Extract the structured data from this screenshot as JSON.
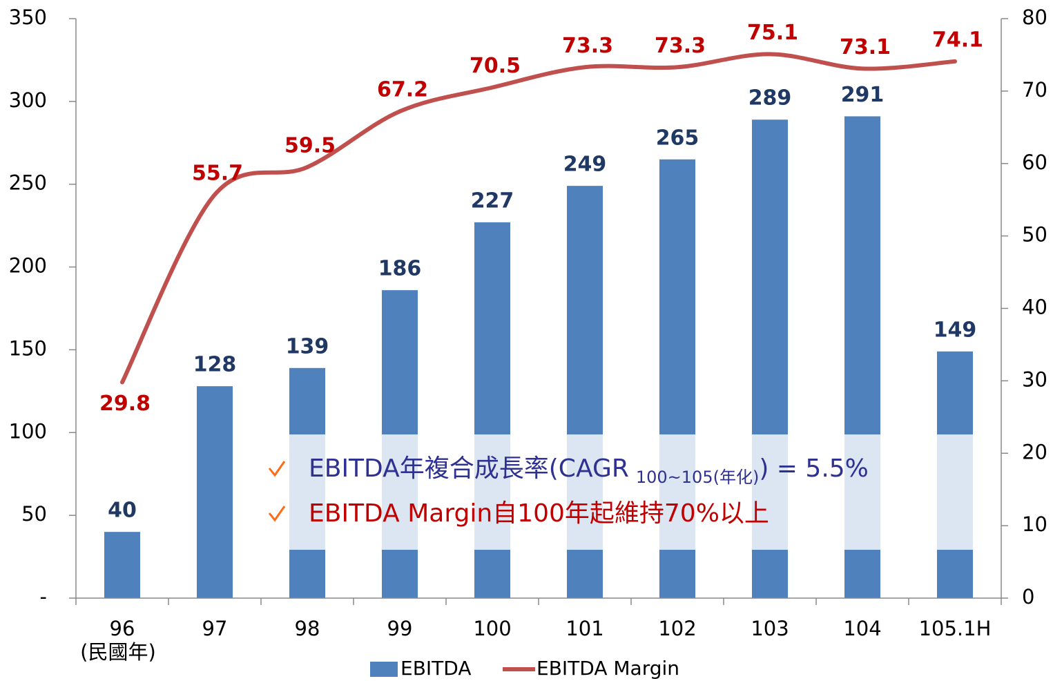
{
  "chart_data": {
    "type": "bar",
    "categories": [
      "96",
      "97",
      "98",
      "99",
      "100",
      "101",
      "102",
      "103",
      "104",
      "105.1H"
    ],
    "x_annotation": "(民國年)",
    "series": [
      {
        "name": "EBITDA",
        "type": "bar",
        "color": "#4f81bd",
        "values": [
          40,
          128,
          139,
          186,
          227,
          249,
          265,
          289,
          291,
          149
        ]
      },
      {
        "name": "EBITDA Margin",
        "type": "line",
        "axis": "y2",
        "color": "#c0504d",
        "values": [
          29.8,
          55.7,
          59.5,
          67.2,
          70.5,
          73.3,
          73.3,
          75.1,
          73.1,
          74.1
        ]
      }
    ],
    "ylim": [
      0,
      350
    ],
    "yticks": [
      {
        "value": 0,
        "label": "-"
      },
      50,
      100,
      150,
      200,
      250,
      300,
      350
    ],
    "y2lim": [
      0,
      80
    ],
    "y2ticks": [
      0,
      10,
      20,
      30,
      40,
      50,
      60,
      70,
      80
    ],
    "legend": "bottom",
    "annotations": [
      {
        "text": "EBITDA年複合成長率(CAGR",
        "sub": "100~105(年化)",
        "tail": ") = 5.5%",
        "color": "#2e3192"
      },
      {
        "text": "EBITDA Margin自100年起維持70%以上",
        "color": "#c00000"
      }
    ]
  }
}
